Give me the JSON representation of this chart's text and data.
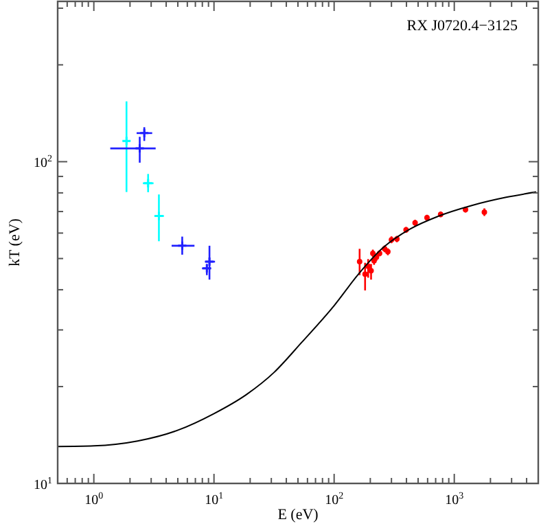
{
  "chart_data": {
    "type": "scatter",
    "title": "RX J0720.4−3125",
    "xlabel": "E (eV)",
    "ylabel": "kT (eV)",
    "log": "xy",
    "grid": false,
    "xlim": [
      0.5,
      5000
    ],
    "ylim": [
      10,
      315
    ],
    "xticks": [
      {
        "value": 0.5,
        "label": null
      },
      {
        "value": 0.6,
        "label": null
      },
      {
        "value": 0.7,
        "label": null
      },
      {
        "value": 0.8,
        "label": null
      },
      {
        "value": 0.9,
        "label": null
      },
      {
        "value": 1,
        "label": "10$^{0}$"
      },
      {
        "value": 2,
        "label": null
      },
      {
        "value": 3,
        "label": null
      },
      {
        "value": 4,
        "label": null
      },
      {
        "value": 5,
        "label": null
      },
      {
        "value": 6,
        "label": null
      },
      {
        "value": 7,
        "label": null
      },
      {
        "value": 8,
        "label": null
      },
      {
        "value": 9,
        "label": null
      },
      {
        "value": 10,
        "label": "10$^{1}$"
      },
      {
        "value": 20,
        "label": null
      },
      {
        "value": 30,
        "label": null
      },
      {
        "value": 40,
        "label": null
      },
      {
        "value": 50,
        "label": null
      },
      {
        "value": 60,
        "label": null
      },
      {
        "value": 70,
        "label": null
      },
      {
        "value": 80,
        "label": null
      },
      {
        "value": 90,
        "label": null
      },
      {
        "value": 100,
        "label": "10$^{2}$"
      },
      {
        "value": 200,
        "label": null
      },
      {
        "value": 300,
        "label": null
      },
      {
        "value": 400,
        "label": null
      },
      {
        "value": 500,
        "label": null
      },
      {
        "value": 600,
        "label": null
      },
      {
        "value": 700,
        "label": null
      },
      {
        "value": 800,
        "label": null
      },
      {
        "value": 900,
        "label": null
      },
      {
        "value": 1000,
        "label": "10$^{3}$"
      },
      {
        "value": 2000,
        "label": null
      },
      {
        "value": 3000,
        "label": null
      },
      {
        "value": 4000,
        "label": null
      },
      {
        "value": 5000,
        "label": null
      }
    ],
    "yticks": [
      {
        "value": 10,
        "label": "10$^{1}$"
      },
      {
        "value": 20,
        "label": null
      },
      {
        "value": 30,
        "label": null
      },
      {
        "value": 40,
        "label": null
      },
      {
        "value": 50,
        "label": null
      },
      {
        "value": 60,
        "label": null
      },
      {
        "value": 70,
        "label": null
      },
      {
        "value": 80,
        "label": null
      },
      {
        "value": 90,
        "label": null
      },
      {
        "value": 100,
        "label": "10$^{2}$"
      },
      {
        "value": 200,
        "label": null
      },
      {
        "value": 300,
        "label": null
      }
    ],
    "series": [
      {
        "type": "scatter",
        "color": "#00ffff",
        "marker": "cross",
        "x": [
          1.87,
          2.83,
          3.48
        ],
        "values": [
          116,
          85.7,
          67.8
        ],
        "errors": [
          [
            80.5,
            154
          ],
          [
            80.4,
            91.6
          ],
          [
            56.6,
            79.1
          ]
        ],
        "xerrors": [
          [
            1.75,
            2.0
          ],
          [
            2.56,
            3.14
          ],
          [
            3.19,
            3.83
          ]
        ]
      },
      {
        "type": "scatter",
        "color": "#2020ff",
        "marker": "cross",
        "x": [
          2.41,
          2.63,
          5.44,
          9.17,
          8.72
        ],
        "values": [
          110,
          122.7,
          54.8,
          48.9,
          46.6
        ],
        "errors": [
          [
            99.3,
            119.5
          ],
          [
            116,
            128
          ],
          [
            51.4,
            58.5
          ],
          [
            43.0,
            54.8
          ],
          [
            44.4,
            48.1
          ]
        ],
        "xerrors": [
          [
            1.37,
            3.27
          ],
          [
            2.27,
            3.06
          ],
          [
            4.44,
            6.88
          ],
          [
            8.4,
            10.2
          ],
          [
            7.95,
            9.47
          ]
        ]
      },
      {
        "type": "scatter",
        "color": "#ff0000",
        "marker": "circle",
        "x": [
          163,
          181,
          192,
          203,
          210,
          215,
          225,
          239,
          263,
          280,
          300,
          333,
          397,
          472,
          593,
          770,
          1240,
          1780
        ],
        "values": [
          48.9,
          44.7,
          47.3,
          45.8,
          51.9,
          49.2,
          50.5,
          51.9,
          53.6,
          52.5,
          57.2,
          57.5,
          61.4,
          64.6,
          67.0,
          68.6,
          71,
          69.7
        ],
        "errors": [
          [
            44.4,
            53.6
          ],
          [
            39.8,
            48.5
          ],
          [
            43.6,
            49.8
          ],
          [
            43.0,
            48.1
          ],
          [
            50.5,
            53.3
          ],
          [
            47.8,
            50.6
          ],
          [
            49.2,
            51.9
          ],
          [
            50.8,
            53
          ],
          [
            52.3,
            54.9
          ],
          [
            51.2,
            53.8
          ],
          [
            55.8,
            58.6
          ],
          [
            56.2,
            58.8
          ],
          [
            60.1,
            62.7
          ],
          [
            63.2,
            66
          ],
          [
            65.6,
            68.4
          ],
          [
            67.2,
            70
          ],
          [
            69.5,
            72.5
          ],
          [
            67.8,
            71.6
          ]
        ]
      },
      {
        "type": "line",
        "color": "#000000",
        "marker": "none",
        "x": [
          0.5,
          1,
          2.31,
          5.06,
          10,
          18.7,
          31.6,
          53.5,
          100,
          160,
          255,
          430,
          730,
          1400,
          2700,
          4800
        ],
        "values": [
          13.03,
          13.09,
          13.55,
          14.66,
          16.48,
          18.91,
          22.13,
          27.4,
          35.7,
          44.8,
          54.0,
          61.8,
          67.6,
          73.1,
          77.5,
          80.5
        ]
      }
    ]
  }
}
